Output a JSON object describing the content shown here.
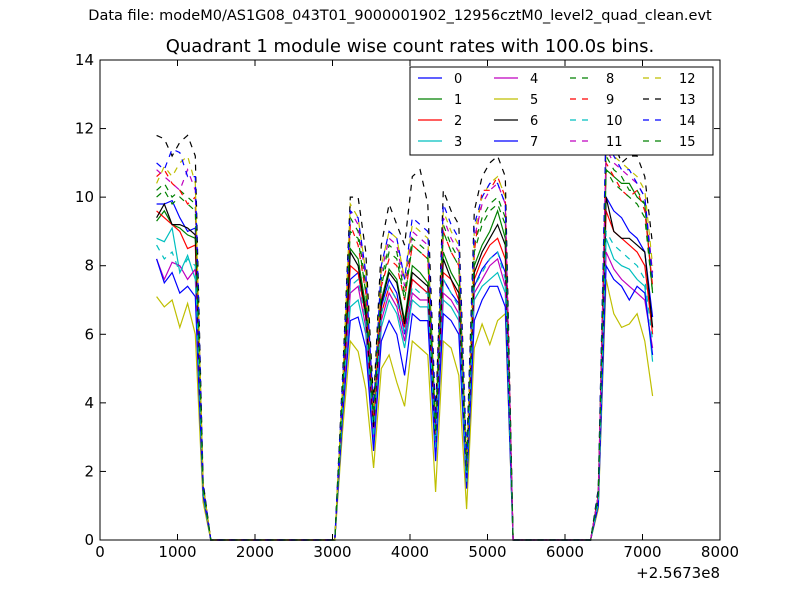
{
  "header": {
    "suptitle": "Data file: modeM0/AS1G08_043T01_9000001902_12956cztM0_level2_quad_clean.evt",
    "title": "Quadrant 1 module wise count rates with 100.0s bins."
  },
  "chart_data": {
    "type": "line",
    "xlim": [
      0,
      8000
    ],
    "ylim": [
      0,
      14
    ],
    "xticks": [
      0,
      1000,
      2000,
      3000,
      4000,
      5000,
      6000,
      7000,
      8000
    ],
    "yticks": [
      0,
      2,
      4,
      6,
      8,
      10,
      12,
      14
    ],
    "x_offset_label": "+2.5673e8",
    "grid": false,
    "legend_position": "top-right",
    "x": [
      730,
      830,
      930,
      1030,
      1130,
      1230,
      1330,
      1430,
      1530,
      1630,
      1730,
      1830,
      1930,
      2030,
      2130,
      2230,
      2330,
      2430,
      2530,
      2630,
      2730,
      2830,
      2930,
      3030,
      3130,
      3230,
      3330,
      3430,
      3530,
      3630,
      3730,
      3830,
      3930,
      4030,
      4130,
      4230,
      4330,
      4430,
      4530,
      4630,
      4730,
      4830,
      4930,
      5030,
      5130,
      5230,
      5330,
      5430,
      5530,
      5630,
      5730,
      5830,
      5930,
      6030,
      6130,
      6230,
      6330,
      6430,
      6530,
      6630,
      6730,
      6830,
      6930,
      7030,
      7130
    ],
    "series": [
      {
        "name": "0",
        "color": "#0000ff",
        "dash": false,
        "values": [
          9.8,
          9.8,
          9.9,
          9.4,
          9.0,
          9.1,
          1.5,
          0,
          0,
          0,
          0,
          0,
          0,
          0,
          0,
          0,
          0,
          0,
          0,
          0,
          0,
          0,
          0,
          0,
          4.0,
          7.6,
          7.8,
          6.5,
          3.2,
          6.8,
          7.6,
          7.2,
          6.0,
          7.6,
          7.4,
          7.2,
          2.8,
          7.6,
          7.2,
          6.9,
          1.8,
          7.4,
          7.9,
          8.2,
          8.4,
          7.8,
          0,
          0,
          0,
          0,
          0,
          0,
          0,
          0,
          0,
          0,
          0,
          1.2,
          10.0,
          9.6,
          9.4,
          9.0,
          8.8,
          8.4,
          6.5
        ]
      },
      {
        "name": "1",
        "color": "#008000",
        "dash": false,
        "values": [
          9.3,
          9.6,
          9.2,
          9.1,
          8.9,
          8.8,
          1.5,
          0,
          0,
          0,
          0,
          0,
          0,
          0,
          0,
          0,
          0,
          0,
          0,
          0,
          0,
          0,
          0,
          0,
          4.2,
          8.5,
          8.2,
          6.8,
          3.4,
          7.0,
          7.9,
          7.6,
          6.4,
          8.0,
          7.8,
          7.5,
          3.0,
          8.4,
          7.8,
          7.4,
          2.0,
          8.0,
          8.6,
          9.0,
          9.6,
          8.8,
          0,
          0,
          0,
          0,
          0,
          0,
          0,
          0,
          0,
          0,
          0,
          1.3,
          10.8,
          10.6,
          10.4,
          10.4,
          10.0,
          9.8,
          7.2
        ]
      },
      {
        "name": "2",
        "color": "#ff0000",
        "dash": false,
        "values": [
          9.6,
          9.4,
          9.2,
          9.0,
          8.5,
          8.6,
          1.4,
          0,
          0,
          0,
          0,
          0,
          0,
          0,
          0,
          0,
          0,
          0,
          0,
          0,
          0,
          0,
          0,
          0,
          4.0,
          8.0,
          7.8,
          6.5,
          3.2,
          6.6,
          7.4,
          7.0,
          6.2,
          7.6,
          7.4,
          7.2,
          2.8,
          7.8,
          7.6,
          7.0,
          1.9,
          7.6,
          8.2,
          8.6,
          8.8,
          8.2,
          0,
          0,
          0,
          0,
          0,
          0,
          0,
          0,
          0,
          0,
          0,
          1.2,
          9.6,
          9.0,
          8.8,
          8.6,
          8.4,
          8.0,
          6.0
        ]
      },
      {
        "name": "3",
        "color": "#00bfbf",
        "dash": false,
        "values": [
          8.8,
          8.7,
          9.1,
          7.8,
          8.3,
          7.6,
          1.3,
          0,
          0,
          0,
          0,
          0,
          0,
          0,
          0,
          0,
          0,
          0,
          0,
          0,
          0,
          0,
          0,
          0,
          3.8,
          6.8,
          7.0,
          6.0,
          2.8,
          6.2,
          7.0,
          6.6,
          5.6,
          7.0,
          6.8,
          6.8,
          2.5,
          7.0,
          6.8,
          6.4,
          1.6,
          7.0,
          7.4,
          7.6,
          7.8,
          7.2,
          0,
          0,
          0,
          0,
          0,
          0,
          0,
          0,
          0,
          0,
          0,
          1.1,
          8.8,
          8.2,
          8.0,
          7.9,
          7.6,
          7.4,
          5.2
        ]
      },
      {
        "name": "4",
        "color": "#bf00bf",
        "dash": false,
        "values": [
          8.2,
          7.6,
          8.1,
          8.0,
          7.6,
          7.9,
          1.4,
          0,
          0,
          0,
          0,
          0,
          0,
          0,
          0,
          0,
          0,
          0,
          0,
          0,
          0,
          0,
          0,
          0,
          3.8,
          7.2,
          7.4,
          6.2,
          3.0,
          6.4,
          7.2,
          6.8,
          5.8,
          7.2,
          7.0,
          7.0,
          2.6,
          7.2,
          7.0,
          6.6,
          1.7,
          7.2,
          7.6,
          8.0,
          8.2,
          7.4,
          0,
          0,
          0,
          0,
          0,
          0,
          0,
          0,
          0,
          0,
          0,
          1.1,
          8.4,
          7.9,
          7.6,
          7.4,
          7.2,
          7.0,
          5.6
        ]
      },
      {
        "name": "5",
        "color": "#bfbf00",
        "dash": false,
        "values": [
          7.1,
          6.8,
          7.0,
          6.2,
          6.9,
          6.0,
          1.1,
          0,
          0,
          0,
          0,
          0,
          0,
          0,
          0,
          0,
          0,
          0,
          0,
          0,
          0,
          0,
          0,
          0,
          3.2,
          5.8,
          5.5,
          4.4,
          2.1,
          5.0,
          5.4,
          4.6,
          3.9,
          5.8,
          5.6,
          5.4,
          1.4,
          5.8,
          5.6,
          4.8,
          0.9,
          5.6,
          6.3,
          5.7,
          6.4,
          6.6,
          0,
          0,
          0,
          0,
          0,
          0,
          0,
          0,
          0,
          0,
          0,
          0.9,
          7.6,
          6.6,
          6.2,
          6.3,
          6.6,
          5.8,
          4.2
        ]
      },
      {
        "name": "6",
        "color": "#000000",
        "dash": false,
        "values": [
          9.4,
          9.8,
          9.2,
          9.2,
          9.1,
          8.9,
          1.5,
          0,
          0,
          0,
          0,
          0,
          0,
          0,
          0,
          0,
          0,
          0,
          0,
          0,
          0,
          0,
          0,
          0,
          4.1,
          8.4,
          8.0,
          6.6,
          3.3,
          6.9,
          7.8,
          7.5,
          6.3,
          7.8,
          7.6,
          7.4,
          2.9,
          8.2,
          7.6,
          7.2,
          1.9,
          7.8,
          8.4,
          8.8,
          9.2,
          8.6,
          0,
          0,
          0,
          0,
          0,
          0,
          0,
          0,
          0,
          0,
          0,
          1.2,
          10.0,
          9.0,
          8.8,
          8.8,
          8.6,
          8.4,
          6.2
        ]
      },
      {
        "name": "7",
        "color": "#0000ff",
        "dash": false,
        "values": [
          8.2,
          7.5,
          7.8,
          7.2,
          7.4,
          7.1,
          1.3,
          0,
          0,
          0,
          0,
          0,
          0,
          0,
          0,
          0,
          0,
          0,
          0,
          0,
          0,
          0,
          0,
          0,
          3.6,
          6.4,
          6.5,
          5.6,
          2.6,
          5.8,
          6.4,
          6.0,
          4.8,
          6.6,
          6.4,
          6.4,
          2.3,
          6.6,
          6.4,
          6.0,
          1.5,
          6.4,
          7.0,
          7.4,
          7.4,
          6.8,
          0,
          0,
          0,
          0,
          0,
          0,
          0,
          0,
          0,
          0,
          0,
          1.0,
          8.0,
          7.6,
          7.4,
          7.0,
          7.4,
          7.2,
          5.4
        ]
      },
      {
        "name": "8",
        "color": "#008000",
        "dash": true,
        "values": [
          10.2,
          10.4,
          10.0,
          10.2,
          10.0,
          9.8,
          1.6,
          0,
          0,
          0,
          0,
          0,
          0,
          0,
          0,
          0,
          0,
          0,
          0,
          0,
          0,
          0,
          0,
          0,
          4.4,
          9.4,
          9.0,
          7.4,
          3.6,
          7.6,
          8.6,
          8.4,
          7.2,
          8.8,
          8.6,
          8.4,
          3.2,
          9.2,
          8.6,
          8.2,
          2.1,
          8.6,
          9.4,
          9.8,
          10.0,
          9.4,
          0,
          0,
          0,
          0,
          0,
          0,
          0,
          0,
          0,
          0,
          0,
          1.3,
          11.2,
          10.8,
          10.6,
          10.2,
          10.2,
          9.8,
          7.6
        ]
      },
      {
        "name": "9",
        "color": "#ff0000",
        "dash": true,
        "values": [
          10.6,
          10.8,
          10.4,
          10.2,
          9.8,
          10.0,
          1.6,
          0,
          0,
          0,
          0,
          0,
          0,
          0,
          0,
          0,
          0,
          0,
          0,
          0,
          0,
          0,
          0,
          0,
          4.3,
          9.2,
          8.6,
          7.2,
          3.5,
          7.4,
          8.2,
          8.0,
          7.0,
          8.6,
          8.4,
          8.2,
          3.1,
          9.0,
          8.4,
          8.0,
          2.0,
          8.4,
          10.2,
          10.2,
          10.6,
          10.0,
          0,
          0,
          0,
          0,
          0,
          0,
          0,
          0,
          0,
          0,
          0,
          1.3,
          11.0,
          10.6,
          10.2,
          10.0,
          10.2,
          9.6,
          7.4
        ]
      },
      {
        "name": "10",
        "color": "#00bfbf",
        "dash": true,
        "values": [
          8.6,
          8.2,
          8.4,
          7.8,
          8.2,
          8.0,
          1.4,
          0,
          0,
          0,
          0,
          0,
          0,
          0,
          0,
          0,
          0,
          0,
          0,
          0,
          0,
          0,
          0,
          0,
          3.9,
          7.4,
          7.6,
          6.4,
          3.0,
          6.6,
          7.4,
          7.0,
          6.0,
          7.4,
          7.2,
          7.2,
          2.7,
          7.6,
          7.2,
          6.8,
          1.7,
          7.4,
          7.8,
          8.2,
          8.4,
          7.6,
          0,
          0,
          0,
          0,
          0,
          0,
          0,
          0,
          0,
          0,
          0,
          1.1,
          9.0,
          8.6,
          8.4,
          8.2,
          8.0,
          7.6,
          5.8
        ]
      },
      {
        "name": "11",
        "color": "#bf00bf",
        "dash": true,
        "values": [
          10.8,
          10.6,
          10.4,
          10.2,
          10.8,
          10.2,
          1.6,
          0,
          0,
          0,
          0,
          0,
          0,
          0,
          0,
          0,
          0,
          0,
          0,
          0,
          0,
          0,
          0,
          0,
          4.4,
          9.6,
          9.2,
          7.6,
          3.7,
          7.8,
          8.8,
          8.6,
          7.4,
          9.0,
          8.8,
          8.6,
          3.3,
          9.4,
          8.8,
          8.4,
          2.1,
          8.8,
          9.8,
          10.2,
          10.4,
          9.8,
          0,
          0,
          0,
          0,
          0,
          0,
          0,
          0,
          0,
          0,
          0,
          1.3,
          11.4,
          11.0,
          10.8,
          10.6,
          10.4,
          10.0,
          7.8
        ]
      },
      {
        "name": "12",
        "color": "#bfbf00",
        "dash": true,
        "values": [
          10.4,
          10.9,
          10.6,
          11.0,
          11.2,
          10.4,
          1.6,
          0,
          0,
          0,
          0,
          0,
          0,
          0,
          0,
          0,
          0,
          0,
          0,
          0,
          0,
          0,
          0,
          0,
          4.5,
          9.8,
          9.4,
          7.8,
          3.8,
          8.0,
          9.0,
          8.8,
          7.6,
          9.2,
          9.0,
          8.8,
          3.4,
          9.6,
          9.0,
          8.6,
          2.2,
          9.0,
          10.0,
          10.4,
          10.6,
          10.0,
          0,
          0,
          0,
          0,
          0,
          0,
          0,
          0,
          0,
          0,
          0,
          1.4,
          11.6,
          11.2,
          11.0,
          10.8,
          10.6,
          10.2,
          8.0
        ]
      },
      {
        "name": "13",
        "color": "#000000",
        "dash": true,
        "values": [
          11.8,
          11.7,
          11.2,
          11.6,
          11.8,
          11.2,
          1.7,
          0,
          0,
          0,
          0,
          0,
          0,
          0,
          0,
          0,
          0,
          0,
          0,
          0,
          0,
          0,
          0,
          0,
          4.8,
          10.0,
          10.0,
          8.4,
          4.0,
          8.6,
          9.8,
          9.2,
          8.6,
          10.6,
          10.8,
          9.8,
          3.6,
          10.2,
          9.6,
          9.2,
          2.4,
          9.6,
          10.6,
          11.0,
          11.2,
          10.6,
          0,
          0,
          0,
          0,
          0,
          0,
          0,
          0,
          0,
          0,
          0,
          1.5,
          12.0,
          11.6,
          11.0,
          11.2,
          11.2,
          10.6,
          8.6
        ]
      },
      {
        "name": "14",
        "color": "#0000ff",
        "dash": true,
        "values": [
          11.0,
          10.8,
          11.4,
          11.3,
          10.6,
          10.6,
          1.6,
          0,
          0,
          0,
          0,
          0,
          0,
          0,
          0,
          0,
          0,
          0,
          0,
          0,
          0,
          0,
          0,
          0,
          4.6,
          9.6,
          9.4,
          7.8,
          3.8,
          8.0,
          9.0,
          8.8,
          7.6,
          9.4,
          9.2,
          9.0,
          3.4,
          9.8,
          9.2,
          8.8,
          2.2,
          9.2,
          10.0,
          10.4,
          10.4,
          9.8,
          0,
          0,
          0,
          0,
          0,
          0,
          0,
          0,
          0,
          0,
          0,
          1.4,
          12.2,
          11.2,
          10.8,
          10.8,
          10.4,
          10.0,
          7.6
        ]
      },
      {
        "name": "15",
        "color": "#008000",
        "dash": true,
        "values": [
          10.0,
          10.2,
          9.8,
          10.0,
          9.8,
          9.6,
          1.5,
          0,
          0,
          0,
          0,
          0,
          0,
          0,
          0,
          0,
          0,
          0,
          0,
          0,
          0,
          0,
          0,
          0,
          4.3,
          9.0,
          8.8,
          7.2,
          3.5,
          7.4,
          8.4,
          8.2,
          7.0,
          8.6,
          8.4,
          8.2,
          3.1,
          9.0,
          8.4,
          8.0,
          2.0,
          8.4,
          9.2,
          9.6,
          9.8,
          9.2,
          0,
          0,
          0,
          0,
          0,
          0,
          0,
          0,
          0,
          0,
          0,
          1.3,
          10.8,
          10.4,
          10.2,
          10.0,
          9.8,
          9.4,
          7.2
        ]
      }
    ]
  }
}
